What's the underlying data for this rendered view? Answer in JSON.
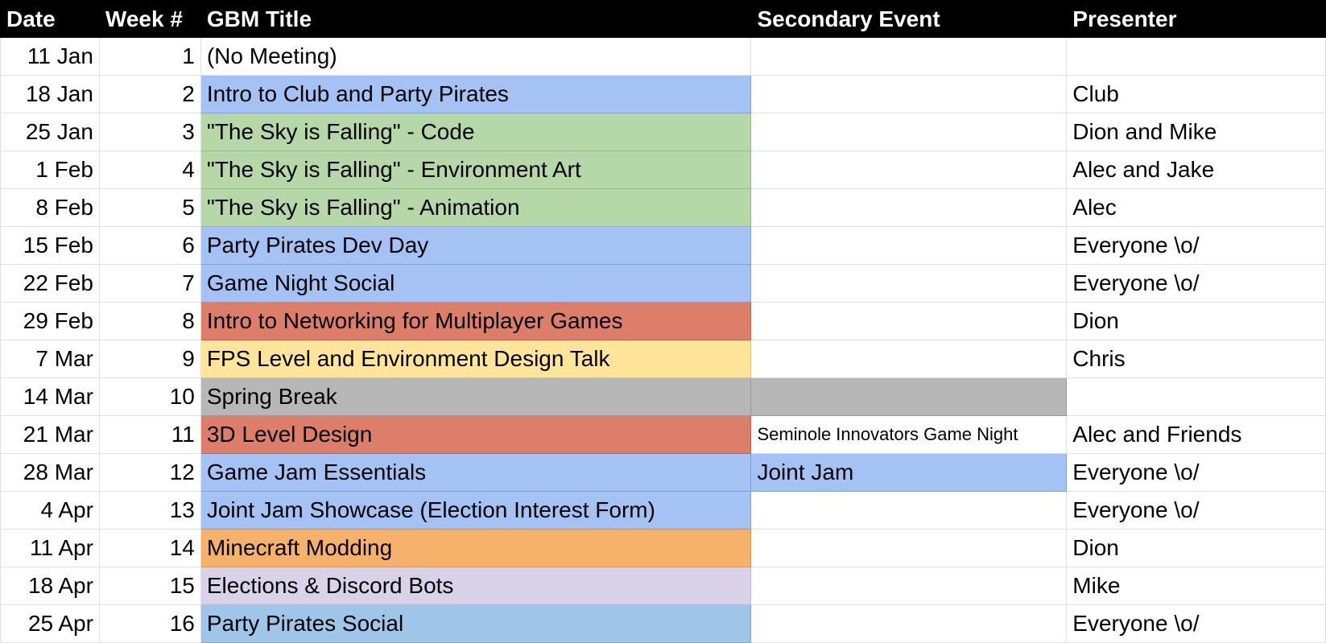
{
  "headers": {
    "date": "Date",
    "week": "Week #",
    "title": "GBM Title",
    "secondary": "Secondary Event",
    "presenter": "Presenter"
  },
  "rows": [
    {
      "date": "11 Jan",
      "week": "1",
      "title": "(No Meeting)",
      "secondary": "",
      "presenter": "",
      "title_color": "none",
      "secondary_color": "none"
    },
    {
      "date": "18 Jan",
      "week": "2",
      "title": "Intro to Club and Party Pirates",
      "secondary": "",
      "presenter": "Club",
      "title_color": "#a4c2f4",
      "secondary_color": "none"
    },
    {
      "date": "25 Jan",
      "week": "3",
      "title": "\"The Sky is Falling\" - Code",
      "secondary": "",
      "presenter": "Dion and Mike",
      "title_color": "#b6d7a8",
      "secondary_color": "none"
    },
    {
      "date": "1 Feb",
      "week": "4",
      "title": "\"The Sky is Falling\" - Environment Art",
      "secondary": "",
      "presenter": "Alec and Jake",
      "title_color": "#b6d7a8",
      "secondary_color": "none"
    },
    {
      "date": "8 Feb",
      "week": "5",
      "title": "\"The Sky is Falling\" - Animation",
      "secondary": "",
      "presenter": "Alec",
      "title_color": "#b6d7a8",
      "secondary_color": "none"
    },
    {
      "date": "15 Feb",
      "week": "6",
      "title": "Party Pirates Dev Day",
      "secondary": "",
      "presenter": "Everyone \\o/",
      "title_color": "#a4c2f4",
      "secondary_color": "none"
    },
    {
      "date": "22 Feb",
      "week": "7",
      "title": "Game Night Social",
      "secondary": "",
      "presenter": "Everyone \\o/",
      "title_color": "#a4c2f4",
      "secondary_color": "none"
    },
    {
      "date": "29 Feb",
      "week": "8",
      "title": "Intro to Networking for Multiplayer Games",
      "secondary": "",
      "presenter": "Dion",
      "title_color": "#dd7e6b",
      "secondary_color": "none"
    },
    {
      "date": "7 Mar",
      "week": "9",
      "title": "FPS Level and Environment Design Talk",
      "secondary": "",
      "presenter": "Chris",
      "title_color": "#ffe599",
      "secondary_color": "none"
    },
    {
      "date": "14 Mar",
      "week": "10",
      "title": "Spring Break",
      "secondary": "",
      "presenter": "",
      "title_color": "#b7b7b7",
      "secondary_color": "#b7b7b7"
    },
    {
      "date": "21 Mar",
      "week": "11",
      "title": "3D Level Design",
      "secondary": "Seminole Innovators Game Night",
      "presenter": "Alec and Friends",
      "title_color": "#dd7e6b",
      "secondary_color": "none"
    },
    {
      "date": "28 Mar",
      "week": "12",
      "title": "Game Jam Essentials",
      "secondary": "Joint Jam",
      "presenter": "Everyone \\o/",
      "title_color": "#a4c2f4",
      "secondary_color": "#a4c2f4"
    },
    {
      "date": "4 Apr",
      "week": "13",
      "title": "Joint Jam Showcase (Election Interest Form)",
      "secondary": "",
      "presenter": "Everyone \\o/",
      "title_color": "#a4c2f4",
      "secondary_color": "none"
    },
    {
      "date": "11 Apr",
      "week": "14",
      "title": "Minecraft Modding",
      "secondary": "",
      "presenter": "Dion",
      "title_color": "#f6b26b",
      "secondary_color": "none"
    },
    {
      "date": "18 Apr",
      "week": "15",
      "title": "Elections & Discord Bots",
      "secondary": "",
      "presenter": "Mike",
      "title_color": "#d9d2e9",
      "secondary_color": "none"
    },
    {
      "date": "25 Apr",
      "week": "16",
      "title": "Party Pirates Social",
      "secondary": "",
      "presenter": "Everyone \\o/",
      "title_color": "#9fc5e8",
      "secondary_color": "none"
    }
  ]
}
